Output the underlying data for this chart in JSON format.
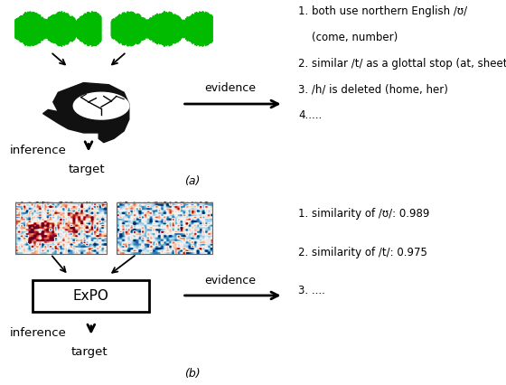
{
  "fig_width": 5.6,
  "fig_height": 4.26,
  "dpi": 100,
  "bg_color": "#ffffff",
  "waveform_color": "#00bb00",
  "text_color": "#000000",
  "head_color": "#111111",
  "part_a_text": [
    "1. both use northern English /ʊ/",
    "    (come, number)",
    "2. similar /t/ as a glottal stop (at, sheet)",
    "3. /h/ is deleted (home, her)",
    "4....."
  ],
  "part_b_text": [
    "1. similarity of /ʊ/: 0.989",
    "2. similarity of /t/: 0.975",
    "3. ...."
  ],
  "label_a": "(a)",
  "label_b": "(b)"
}
